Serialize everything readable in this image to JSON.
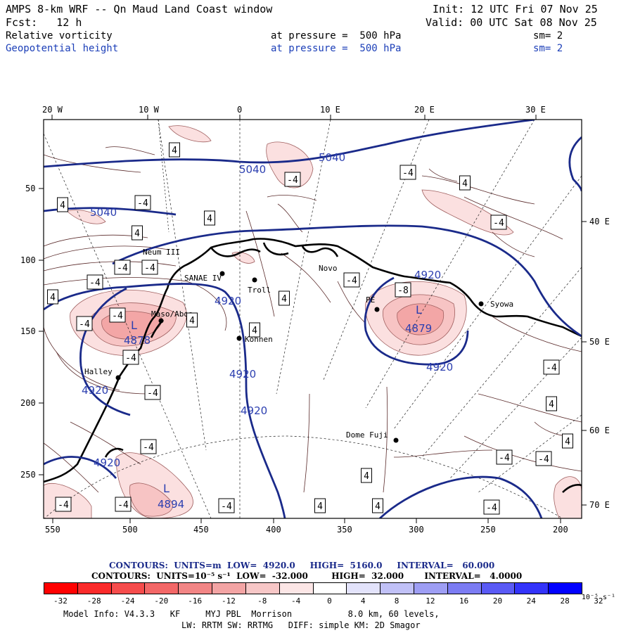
{
  "header": {
    "title": "AMPS 8-km WRF -- Qn Maud Land Coast window",
    "init": "Init: 12 UTC Fri 07 Nov 25",
    "fcst": "Fcst:   12 h",
    "valid": "Valid: 00 UTC Sat 08 Nov 25",
    "field1_name": "Relative vorticity",
    "field1_level": "at pressure =  500 hPa",
    "field1_sm": "sm= 2",
    "field2_name": "Geopotential height",
    "field2_level": "at pressure =  500 hPa",
    "field2_sm": "sm= 2"
  },
  "axes": {
    "top_lon": [
      "20 W",
      "10 W",
      "0",
      "10 E",
      "20 E",
      "30 E"
    ],
    "right_lon": [
      "40 E",
      "50 E",
      "60 E",
      "70 E"
    ],
    "left_y": [
      "50",
      "100",
      "150",
      "200",
      "250"
    ],
    "bottom_x": [
      "550",
      "500",
      "450",
      "400",
      "350",
      "300",
      "250",
      "200"
    ]
  },
  "places": [
    "Neum III",
    "SANAE IV",
    "Troll",
    "Novo",
    "Maso/Aboa",
    "Kohnen",
    "Halley",
    "PE",
    "Syowa",
    "Dome Fuji"
  ],
  "map_labels": {
    "height_contours": [
      "5040",
      "5040",
      "5040",
      "4920",
      "4920",
      "4920",
      "4920",
      "4920",
      "4920",
      "4920"
    ],
    "vort_boxes": [
      "4",
      "-4",
      "-4",
      "4",
      "4",
      "-4",
      "4",
      "4",
      "-4",
      "-4",
      "-4",
      "-4",
      "4",
      "-4",
      "-8",
      "4",
      "4",
      "-4",
      "-4",
      "4",
      "-4",
      "-4",
      "-4",
      "-4",
      "4",
      "4",
      "-4",
      "-4",
      "4",
      "4",
      "-4",
      "-4",
      "-4",
      "-4",
      "4"
    ],
    "lows": [
      "L",
      "4879",
      "L",
      "4878",
      "L",
      "4894"
    ]
  },
  "legend": {
    "height_line": "CONTOURS:  UNITS=m  LOW=  4920.0     HIGH=  5160.0     INTERVAL=   60.000",
    "vort_line": "CONTOURS:  UNITS=10⁻⁵ s⁻¹  LOW=  -32.000        HIGH=  32.000       INTERVAL=   4.0000",
    "colorbar_labels": [
      "-32",
      "-28",
      "-24",
      "-20",
      "-16",
      "-12",
      "-8",
      "-4",
      "0",
      "4",
      "8",
      "12",
      "16",
      "20",
      "24",
      "28",
      "32"
    ],
    "colorbar_unit": "10⁻⁵ s⁻¹",
    "colors": [
      "#ff0000",
      "#fb2a2a",
      "#f64c4c",
      "#f36767",
      "#f28585",
      "#f3a4a4",
      "#f7c7c7",
      "#fce6e6",
      "#ffffff",
      "#ffffff",
      "#e3e3fb",
      "#c1c1f7",
      "#9e9ef4",
      "#7c7cf3",
      "#5a5af5",
      "#3333fa",
      "#0000ff"
    ]
  },
  "footer": {
    "line1": "Model Info: V4.3.3   KF     MYJ PBL  Morrison           8.0 km, 60 levels,",
    "line2": "LW: RRTM SW: RRTMG   DIFF: simple KM: 2D Smagor"
  }
}
